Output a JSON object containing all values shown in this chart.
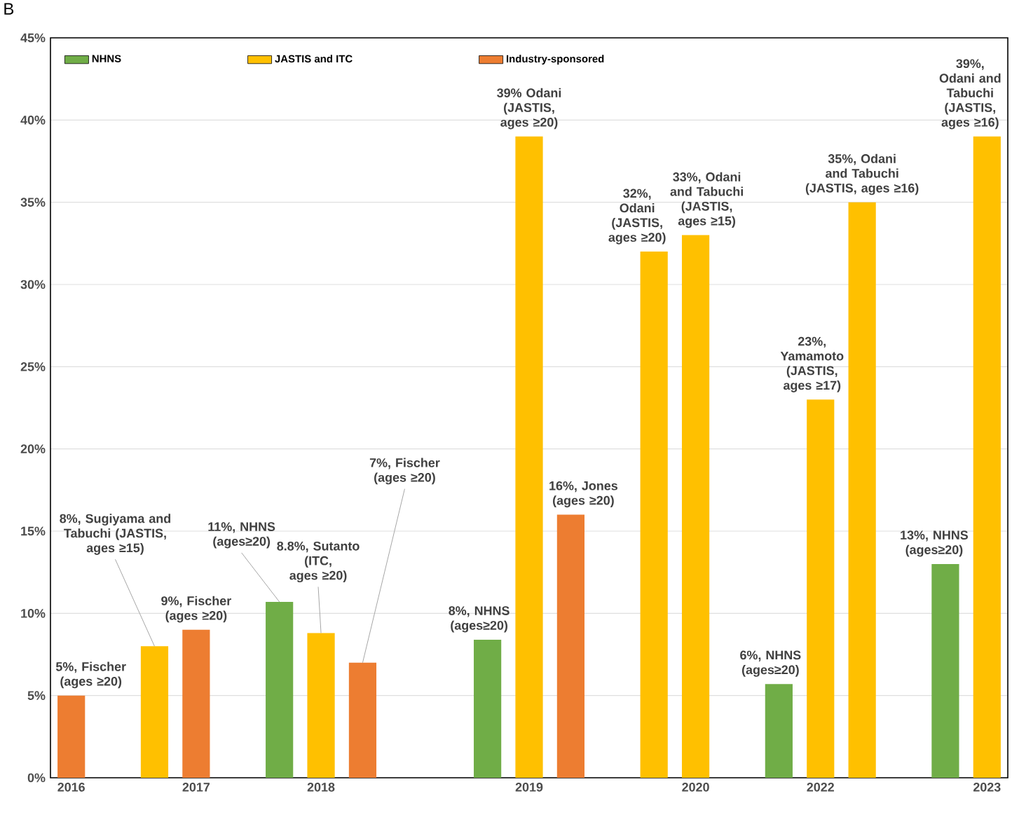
{
  "chart_data": {
    "type": "bar",
    "annotations": [
      "B"
    ],
    "categories": [
      "2016",
      null,
      null,
      "2017",
      null,
      null,
      "2018",
      null,
      null,
      null,
      null,
      "2019",
      null,
      null,
      null,
      "2020",
      null,
      null,
      "2022",
      null,
      null,
      null,
      "2023"
    ],
    "series": [
      {
        "name": "NHNS",
        "color": "#70ad47",
        "values": [
          null,
          null,
          null,
          null,
          null,
          10.7,
          null,
          null,
          null,
          null,
          8.4,
          null,
          null,
          null,
          null,
          null,
          null,
          5.7,
          null,
          null,
          null,
          13.0,
          null
        ],
        "value_labels": [
          null,
          null,
          null,
          null,
          null,
          "11%, NHNS (ages≥20)",
          null,
          null,
          null,
          null,
          "8%, NHNS (ages≥20)",
          null,
          null,
          null,
          null,
          null,
          null,
          "6%, NHNS (ages≥20)",
          null,
          null,
          null,
          "13%, NHNS (ages≥20)",
          null
        ]
      },
      {
        "name": "JASTIS and ITC",
        "color": "#ffc000",
        "values": [
          null,
          null,
          8.0,
          null,
          null,
          null,
          8.8,
          null,
          null,
          null,
          null,
          39.0,
          null,
          null,
          32.0,
          33.0,
          null,
          null,
          23.0,
          35.0,
          null,
          null,
          39.0
        ],
        "value_labels": [
          null,
          null,
          "8%, Sugiyama and Tabuchi (JASTIS, ages ≥15)",
          null,
          null,
          null,
          "8.8%, Sutanto (ITC, ages ≥20)",
          null,
          null,
          null,
          null,
          "39% Odani (JASTIS, ages ≥20)",
          null,
          null,
          "32%, Odani (JASTIS, ages ≥20)",
          "33%, Odani and Tabuchi (JASTIS, ages ≥15)",
          null,
          null,
          "23%, Yamamoto (JASTIS, ages ≥17)",
          "35%, Odani and Tabuchi (JASTIS, ages ≥16)",
          null,
          null,
          "39%, Odani and Tabuchi (JASTIS, ages ≥16)"
        ]
      },
      {
        "name": "Industry-sponsored",
        "color": "#ed7d31",
        "values": [
          5.0,
          null,
          null,
          9.0,
          null,
          null,
          null,
          7.0,
          null,
          null,
          null,
          null,
          16.0,
          null,
          null,
          null,
          null,
          null,
          null,
          null,
          null,
          null,
          null
        ],
        "value_labels": [
          "5%, Fischer (ages ≥20)",
          null,
          null,
          "9%, Fischer (ages ≥20)",
          null,
          null,
          null,
          "7%, Fischer (ages ≥20)",
          null,
          null,
          null,
          null,
          "16%, Jones (ages ≥20)",
          null,
          null,
          null,
          null,
          null,
          null,
          null,
          null,
          null,
          null
        ]
      }
    ],
    "ylim": [
      0,
      45
    ],
    "yticks": [
      {
        "value": 0,
        "label": "0%"
      },
      {
        "value": 5,
        "label": "5%"
      },
      {
        "value": 10,
        "label": "10%"
      },
      {
        "value": 15,
        "label": "15%"
      },
      {
        "value": 20,
        "label": "20%"
      },
      {
        "value": 25,
        "label": "25%"
      },
      {
        "value": 30,
        "label": "30%"
      },
      {
        "value": 35,
        "label": "35%"
      },
      {
        "value": 40,
        "label": "40%"
      },
      {
        "value": 45,
        "label": "45%"
      }
    ],
    "grid": "y",
    "legend": "top"
  }
}
